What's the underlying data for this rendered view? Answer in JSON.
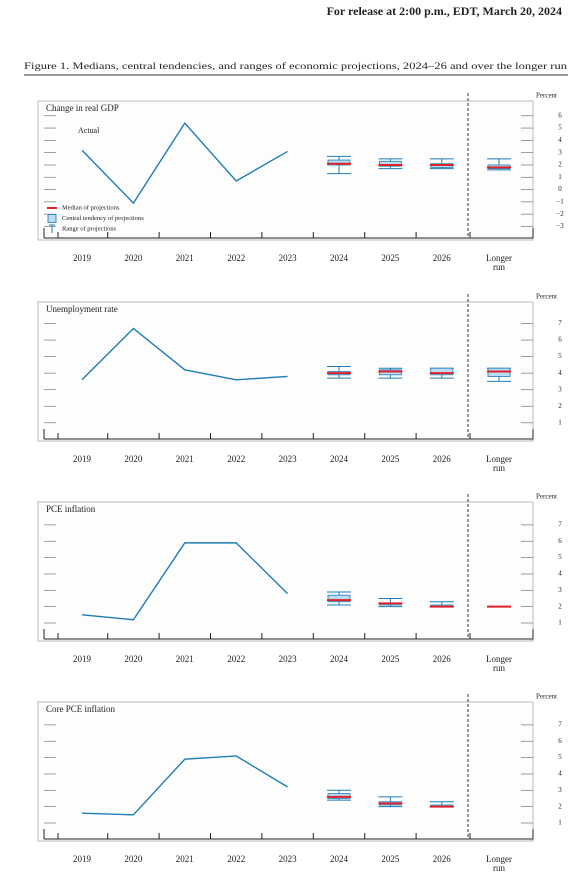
{
  "header": {
    "release": "For release at 2:00 p.m., EDT, March 20, 2024"
  },
  "caption": "Figure 1. Medians, central tendencies, and ranges of economic projections, 2024–26 and over the longer run",
  "chart_data": [
    {
      "type": "line",
      "title": "Change in real GDP",
      "y_label": "Percent",
      "categories": [
        "2019",
        "2020",
        "2021",
        "2022",
        "2023",
        "2024",
        "2025",
        "2026",
        "Longer run"
      ],
      "series": [
        {
          "name": "Actual",
          "color": "#1f7db5",
          "values": [
            3.2,
            -1.1,
            5.4,
            0.7,
            3.1,
            null,
            null,
            null,
            null
          ]
        }
      ],
      "projections": {
        "median": [
          null,
          null,
          null,
          null,
          null,
          2.1,
          2.0,
          2.0,
          1.8
        ],
        "central_tendency_low": [
          null,
          null,
          null,
          null,
          null,
          2.0,
          1.9,
          1.8,
          1.7
        ],
        "central_tendency_high": [
          null,
          null,
          null,
          null,
          null,
          2.4,
          2.3,
          2.1,
          2.0
        ],
        "range_low": [
          null,
          null,
          null,
          null,
          null,
          1.3,
          1.7,
          1.7,
          1.6
        ],
        "range_high": [
          null,
          null,
          null,
          null,
          null,
          2.7,
          2.5,
          2.5,
          2.5
        ]
      },
      "legend": [
        "Median of projections",
        "Central tendency of projections",
        "Range of projections"
      ],
      "legend_loc": "lower left",
      "median_color": "#e0202a",
      "box_color": "#b9dcf2",
      "range_color": "#1f7db5",
      "ylim": [
        -4.1,
        7.2
      ],
      "yticks": [
        6,
        5,
        4,
        3,
        2,
        1,
        0,
        {
          "value": -1,
          "label": "−1"
        },
        {
          "value": -2,
          "label": "−2"
        },
        {
          "value": -3,
          "label": "−3"
        }
      ]
    },
    {
      "type": "line",
      "title": "Unemployment rate",
      "y_label": "Percent",
      "categories": [
        "2019",
        "2020",
        "2021",
        "2022",
        "2023",
        "2024",
        "2025",
        "2026",
        "Longer run"
      ],
      "series": [
        {
          "color": "#1f7db5",
          "values": [
            3.6,
            6.7,
            4.2,
            3.6,
            3.8,
            null,
            null,
            null,
            null
          ]
        }
      ],
      "projections": {
        "median": [
          null,
          null,
          null,
          null,
          null,
          4.0,
          4.1,
          4.0,
          4.1
        ],
        "central_tendency_low": [
          null,
          null,
          null,
          null,
          null,
          3.9,
          3.9,
          3.9,
          3.8
        ],
        "central_tendency_high": [
          null,
          null,
          null,
          null,
          null,
          4.1,
          4.2,
          4.3,
          4.3
        ],
        "range_low": [
          null,
          null,
          null,
          null,
          null,
          3.7,
          3.7,
          3.7,
          3.5
        ],
        "range_high": [
          null,
          null,
          null,
          null,
          null,
          4.4,
          4.3,
          4.3,
          4.3
        ]
      },
      "median_color": "#e0202a",
      "box_color": "#b9dcf2",
      "range_color": "#1f7db5",
      "ylim": [
        -0.1,
        8.3
      ],
      "yticks": [
        7,
        6,
        5,
        4,
        3,
        2,
        1
      ]
    },
    {
      "type": "line",
      "title": "PCE inflation",
      "y_label": "Percent",
      "categories": [
        "2019",
        "2020",
        "2021",
        "2022",
        "2023",
        "2024",
        "2025",
        "2026",
        "Longer run"
      ],
      "series": [
        {
          "color": "#1f7db5",
          "values": [
            1.5,
            1.2,
            5.9,
            5.9,
            2.8,
            null,
            null,
            null,
            null
          ]
        }
      ],
      "projections": {
        "median": [
          null,
          null,
          null,
          null,
          null,
          2.4,
          2.2,
          2.0,
          2.0
        ],
        "central_tendency_low": [
          null,
          null,
          null,
          null,
          null,
          2.3,
          2.1,
          2.0,
          2.0
        ],
        "central_tendency_high": [
          null,
          null,
          null,
          null,
          null,
          2.7,
          2.2,
          2.1,
          2.0
        ],
        "range_low": [
          null,
          null,
          null,
          null,
          null,
          2.1,
          2.0,
          2.0,
          2.0
        ],
        "range_high": [
          null,
          null,
          null,
          null,
          null,
          2.9,
          2.5,
          2.3,
          2.0
        ]
      },
      "median_color": "#e0202a",
      "box_color": "#b9dcf2",
      "range_color": "#1f7db5",
      "ylim": [
        -0.1,
        8.4
      ],
      "yticks": [
        7,
        6,
        5,
        4,
        3,
        2,
        1
      ]
    },
    {
      "type": "line",
      "title": "Core PCE inflation",
      "y_label": "Percent",
      "categories": [
        "2019",
        "2020",
        "2021",
        "2022",
        "2023",
        "2024",
        "2025",
        "2026",
        "Longer run"
      ],
      "series": [
        {
          "color": "#1f7db5",
          "values": [
            1.6,
            1.5,
            4.9,
            5.1,
            3.2,
            null,
            null,
            null,
            null
          ]
        }
      ],
      "projections": {
        "median": [
          null,
          null,
          null,
          null,
          null,
          2.6,
          2.2,
          2.0,
          null
        ],
        "central_tendency_low": [
          null,
          null,
          null,
          null,
          null,
          2.5,
          2.1,
          2.0,
          null
        ],
        "central_tendency_high": [
          null,
          null,
          null,
          null,
          null,
          2.8,
          2.3,
          2.1,
          null
        ],
        "range_low": [
          null,
          null,
          null,
          null,
          null,
          2.4,
          2.0,
          2.0,
          null
        ],
        "range_high": [
          null,
          null,
          null,
          null,
          null,
          3.0,
          2.6,
          2.3,
          null
        ]
      },
      "median_color": "#e0202a",
      "box_color": "#b9dcf2",
      "range_color": "#1f7db5",
      "ylim": [
        -0.1,
        8.4
      ],
      "yticks": [
        7,
        6,
        5,
        4,
        3,
        2,
        1
      ]
    }
  ]
}
